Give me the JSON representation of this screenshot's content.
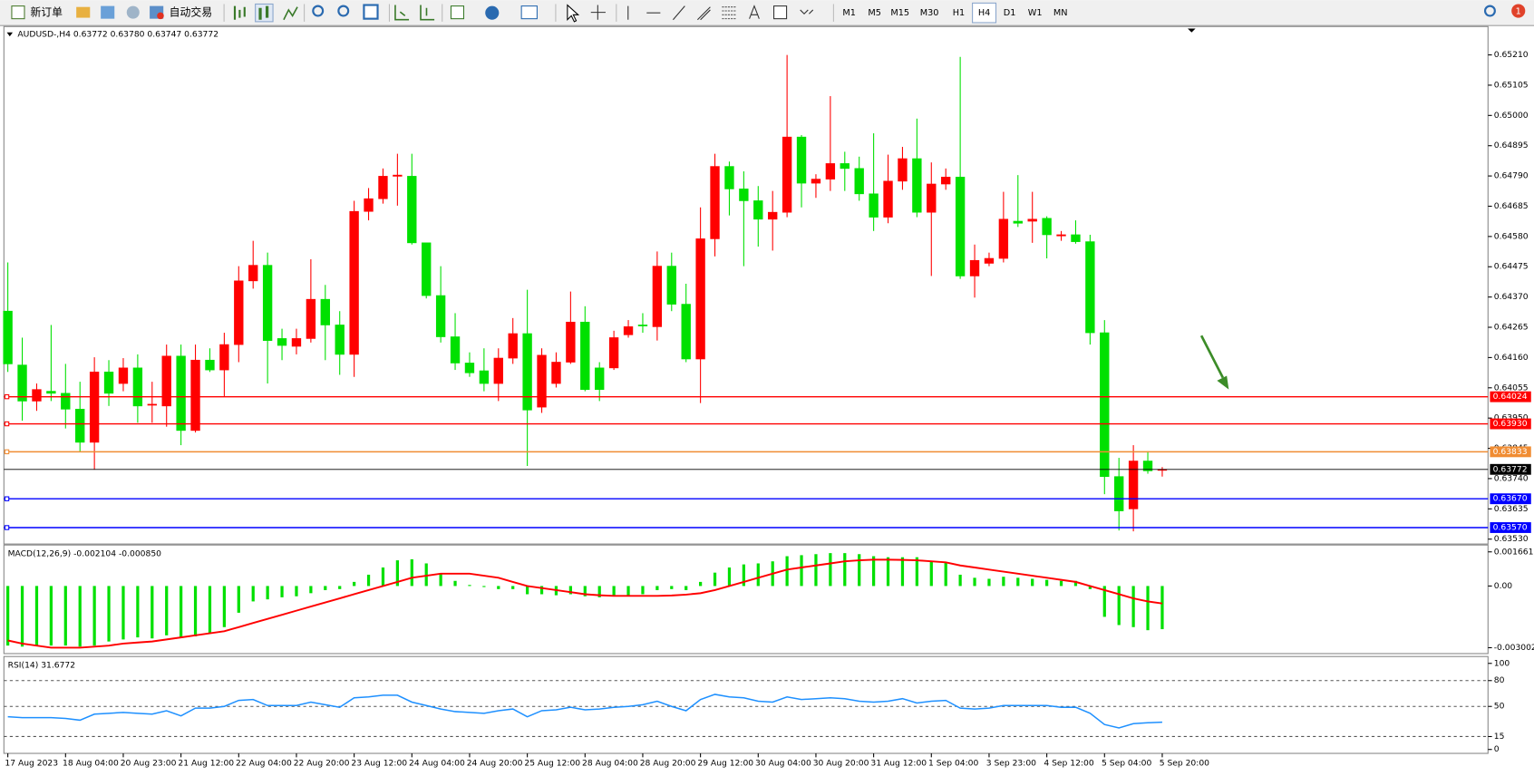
{
  "toolbar": {
    "buttons": [
      "新订单",
      "自动交易"
    ],
    "timeframes": [
      "M1",
      "M5",
      "M15",
      "M30",
      "H1",
      "H4",
      "D1",
      "W1",
      "MN"
    ],
    "active_timeframe": "H4",
    "notifications": 1
  },
  "chart_data": [
    {
      "type": "candlestick",
      "title": "AUDUSD-,H4  0.63772 0.63780 0.63747 0.63772",
      "categories": [
        "17 Aug 2023",
        null,
        null,
        null,
        "18 Aug 04:00",
        null,
        null,
        null,
        "20 Aug 23:00",
        null,
        null,
        null,
        "21 Aug 12:00",
        null,
        null,
        null,
        "22 Aug 04:00",
        null,
        null,
        null,
        "22 Aug 20:00",
        null,
        null,
        null,
        "23 Aug 12:00",
        null,
        null,
        null,
        "24 Aug 04:00",
        null,
        null,
        null,
        "24 Aug 20:00",
        null,
        null,
        null,
        "25 Aug 12:00",
        null,
        null,
        null,
        "28 Aug 04:00",
        null,
        null,
        null,
        "28 Aug 20:00",
        null,
        null,
        null,
        "29 Aug 12:00",
        null,
        null,
        null,
        "30 Aug 04:00",
        null,
        null,
        null,
        "30 Aug 20:00",
        null,
        null,
        null,
        "31 Aug 12:00",
        null,
        null,
        null,
        "1 Sep 04:00",
        null,
        null,
        null,
        "3 Sep 23:00",
        null,
        null,
        null,
        "4 Sep 12:00",
        null,
        null,
        null,
        "5 Sep 04:00",
        null,
        null,
        null,
        "5 Sep 20:00"
      ],
      "open": [
        0.64321,
        0.64134,
        0.64009,
        0.64043,
        0.64036,
        0.63981,
        0.63866,
        0.6411,
        0.6407,
        0.64124,
        0.63995,
        0.63992,
        0.64165,
        0.63907,
        0.64151,
        0.64117,
        0.64205,
        0.64426,
        0.6448,
        0.64226,
        0.64199,
        0.64226,
        0.64362,
        0.64273,
        0.64171,
        0.64667,
        0.64711,
        0.64789,
        0.64789,
        0.64558,
        0.64375,
        0.64232,
        0.64141,
        0.64114,
        0.6407,
        0.64158,
        0.64243,
        0.63988,
        0.6407,
        0.64144,
        0.64283,
        0.64124,
        0.64124,
        0.64239,
        0.64273,
        0.64267,
        0.64477,
        0.64345,
        0.64155,
        0.64572,
        0.64823,
        0.64745,
        0.64704,
        0.6464,
        0.64664,
        0.64925,
        0.64765,
        0.64779,
        0.64833,
        0.64816,
        0.64728,
        0.64647,
        0.64772,
        0.6485,
        0.64664,
        0.64762,
        0.64786,
        0.64443,
        0.64487,
        0.64504,
        0.64633,
        0.64633,
        0.64643,
        0.64582,
        0.64586,
        0.64562,
        0.64246,
        0.63747,
        0.63635,
        0.63801,
        0.63772
      ],
      "high": [
        0.6449,
        0.64229,
        0.6407,
        0.64273,
        0.64138,
        0.64076,
        0.64161,
        0.64151,
        0.64158,
        0.64171,
        0.64076,
        0.64205,
        0.64205,
        0.64205,
        0.64192,
        0.64246,
        0.64477,
        0.64565,
        0.64524,
        0.6426,
        0.6426,
        0.64501,
        0.64412,
        0.64321,
        0.64704,
        0.64748,
        0.64816,
        0.64867,
        0.64867,
        0.64558,
        0.64477,
        0.64314,
        0.64178,
        0.64192,
        0.64192,
        0.64297,
        0.64395,
        0.64192,
        0.64178,
        0.64389,
        0.64338,
        0.64144,
        0.64253,
        0.6429,
        0.64314,
        0.64528,
        0.64524,
        0.64416,
        0.64681,
        0.64867,
        0.6484,
        0.64806,
        0.64755,
        0.64738,
        0.6521,
        0.64932,
        0.64796,
        0.65067,
        0.64874,
        0.64857,
        0.64938,
        0.64864,
        0.64891,
        0.64989,
        0.64837,
        0.64816,
        0.65203,
        0.64552,
        0.64524,
        0.64735,
        0.64793,
        0.64735,
        0.6465,
        0.64599,
        0.64636,
        0.64586,
        0.6429,
        0.63812,
        0.63856,
        0.63835,
        0.6378
      ],
      "low": [
        0.6411,
        0.63941,
        0.63975,
        0.64009,
        0.63914,
        0.63832,
        0.63771,
        0.63992,
        0.64043,
        0.63934,
        0.63934,
        0.6392,
        0.63856,
        0.639,
        0.6411,
        0.64025,
        0.64144,
        0.64399,
        0.6407,
        0.64151,
        0.64171,
        0.64212,
        0.64151,
        0.641,
        0.64093,
        0.64636,
        0.64694,
        0.64687,
        0.64552,
        0.64365,
        0.64212,
        0.64117,
        0.64093,
        0.64043,
        0.64009,
        0.64138,
        0.63784,
        0.63968,
        0.64056,
        0.64138,
        0.64043,
        0.64009,
        0.64117,
        0.64229,
        0.64246,
        0.64219,
        0.64321,
        0.64144,
        0.64002,
        0.64511,
        0.64653,
        0.64477,
        0.64545,
        0.64531,
        0.64647,
        0.64681,
        0.64714,
        0.64738,
        0.64738,
        0.64704,
        0.64599,
        0.64626,
        0.64742,
        0.64647,
        0.64443,
        0.64742,
        0.64433,
        0.64368,
        0.64477,
        0.6449,
        0.64613,
        0.64558,
        0.64504,
        0.64565,
        0.64555,
        0.64205,
        0.63686,
        0.6356,
        0.63557,
        0.63757,
        0.63747
      ],
      "close": [
        0.64138,
        0.64009,
        0.64049,
        0.64036,
        0.63981,
        0.63866,
        0.6411,
        0.64036,
        0.64124,
        0.63992,
        0.63998,
        0.64165,
        0.63907,
        0.64151,
        0.64117,
        0.64205,
        0.64426,
        0.6448,
        0.64219,
        0.64202,
        0.64226,
        0.64362,
        0.64273,
        0.64171,
        0.64667,
        0.64711,
        0.64789,
        0.64793,
        0.64558,
        0.64375,
        0.64232,
        0.64141,
        0.64107,
        0.6407,
        0.64158,
        0.64243,
        0.63978,
        0.64168,
        0.64144,
        0.64283,
        0.64049,
        0.64049,
        0.64229,
        0.64267,
        0.6427,
        0.64477,
        0.64345,
        0.64155,
        0.64572,
        0.64823,
        0.64745,
        0.64704,
        0.6464,
        0.64664,
        0.64925,
        0.64765,
        0.64779,
        0.64833,
        0.64816,
        0.64728,
        0.64647,
        0.64772,
        0.6485,
        0.64664,
        0.64762,
        0.64786,
        0.64443,
        0.64497,
        0.64504,
        0.6464,
        0.64626,
        0.6464,
        0.64586,
        0.64586,
        0.64562,
        0.64246,
        0.63747,
        0.63628,
        0.63801,
        0.63767,
        0.63772
      ],
      "up_color": "#ff0000",
      "down_color": "#00e000",
      "ylim": [
        0.63513,
        0.65305
      ],
      "yticks": [
        {
          "value": 0.6353,
          "label": "0.63530"
        },
        0.63635,
        {
          "value": 0.6374,
          "label": "0.63740"
        },
        {
          "value": 0.63845,
          "label": "0.63845"
        },
        {
          "value": 0.6395,
          "label": "0.63950"
        },
        0.64055,
        {
          "value": 0.6416,
          "label": "0.64160"
        },
        0.64265,
        {
          "value": 0.6437,
          "label": "0.64370"
        },
        0.64475,
        {
          "value": 0.6458,
          "label": "0.64580"
        },
        0.64685,
        {
          "value": 0.6479,
          "label": "0.64790"
        },
        0.64895,
        {
          "value": 0.65,
          "label": "0.65000"
        },
        0.65105,
        {
          "value": 0.6521,
          "label": "0.65210"
        }
      ],
      "levels": [
        {
          "value": 0.64024,
          "color": "#ff0000"
        },
        {
          "value": 0.6393,
          "label": "0.63930",
          "color": "#ff0000"
        },
        {
          "value": 0.63833,
          "color": "#f08c32"
        },
        {
          "value": 0.6367,
          "label": "0.63670",
          "color": "#0000ff"
        },
        {
          "value": 0.6357,
          "label": "0.63570",
          "color": "#0000ff"
        }
      ]
    },
    {
      "type": "macd",
      "title": "MACD(12,26,9) -0.002104 -0.000850",
      "histogram": [
        -0.0029,
        -0.00295,
        -0.0029,
        -0.0029,
        -0.0029,
        -0.00295,
        -0.0029,
        -0.0027,
        -0.0026,
        -0.0025,
        -0.00255,
        -0.0024,
        -0.0025,
        -0.00245,
        -0.0023,
        -0.002,
        -0.0013,
        -0.00075,
        -0.00065,
        -0.00055,
        -0.0005,
        -0.00035,
        -0.0002,
        -0.00015,
        0.0002,
        0.00055,
        0.0009,
        0.00125,
        0.0013,
        0.0011,
        0.0006,
        0.00025,
        5e-05,
        -5e-05,
        -0.00015,
        -0.00015,
        -0.0004,
        -0.0004,
        -0.00045,
        -0.0004,
        -0.0005,
        -0.00055,
        -0.0005,
        -0.00045,
        -0.0004,
        -0.0002,
        -0.00015,
        -0.0002,
        0.0002,
        0.00065,
        0.0009,
        0.00105,
        0.0011,
        0.0012,
        0.00145,
        0.0015,
        0.00155,
        0.0016,
        0.0016,
        0.00155,
        0.00145,
        0.0014,
        0.0014,
        0.0014,
        0.0012,
        0.00115,
        0.00055,
        0.0004,
        0.00035,
        0.00045,
        0.0004,
        0.00035,
        0.0003,
        0.00025,
        0.00025,
        -0.00015,
        -0.0015,
        -0.0019,
        -0.002,
        -0.00215,
        -0.0021
      ],
      "signal": [
        -0.00265,
        -0.0028,
        -0.0029,
        -0.003,
        -0.003,
        -0.003,
        -0.00295,
        -0.0029,
        -0.0028,
        -0.00275,
        -0.0027,
        -0.0026,
        -0.0025,
        -0.0024,
        -0.0023,
        -0.0022,
        -0.002,
        -0.0018,
        -0.0016,
        -0.0014,
        -0.0012,
        -0.001,
        -0.0008,
        -0.0006,
        -0.0004,
        -0.0002,
        0,
        0.0002,
        0.0004,
        0.0005,
        0.0006,
        0.0006,
        0.0006,
        0.0005,
        0.0004,
        0.0002,
        0,
        -0.0001,
        -0.0002,
        -0.0003,
        -0.0004,
        -0.00045,
        -0.00048,
        -0.00048,
        -0.00048,
        -0.00048,
        -0.00046,
        -0.00042,
        -0.00035,
        -0.0002,
        0,
        0.0002,
        0.0004,
        0.0006,
        0.0008,
        0.0009,
        0.001,
        0.0011,
        0.0012,
        0.00125,
        0.00128,
        0.00128,
        0.00127,
        0.00125,
        0.0012,
        0.00115,
        0.001,
        0.0009,
        0.0008,
        0.0007,
        0.0006,
        0.0005,
        0.0004,
        0.0003,
        0.0002,
        0,
        -0.0002,
        -0.0004,
        -0.0006,
        -0.00075,
        -0.00085
      ],
      "histogram_color": "#00e000",
      "signal_color": "#ff0000",
      "ylim": [
        -0.003288,
        0.001947
      ],
      "yticks": [
        0.001661,
        {
          "value": 0,
          "label": "0.00"
        },
        -0.003002
      ]
    },
    {
      "type": "line",
      "title": "RSI(14) 31.6772",
      "values": [
        38,
        37,
        37,
        37,
        36,
        34,
        41,
        42,
        43,
        42,
        41,
        45,
        39,
        48,
        48,
        50,
        57,
        58,
        51,
        51,
        51,
        55,
        52,
        49,
        60,
        61,
        63,
        63,
        55,
        51,
        47,
        44,
        43,
        42,
        45,
        47,
        38,
        45,
        46,
        49,
        46,
        47,
        49,
        50,
        52,
        56,
        50,
        45,
        58,
        64,
        61,
        60,
        56,
        55,
        61,
        58,
        59,
        60,
        59,
        56,
        55,
        56,
        59,
        54,
        56,
        57,
        48,
        47,
        48,
        51,
        51,
        51,
        51,
        49,
        49,
        42,
        29,
        25,
        30,
        31,
        31.6772
      ],
      "color": "#1e90ff",
      "ylim": [
        0,
        100
      ],
      "yticks": [
        100,
        80,
        50,
        15,
        0
      ],
      "grid": "dashed"
    }
  ]
}
